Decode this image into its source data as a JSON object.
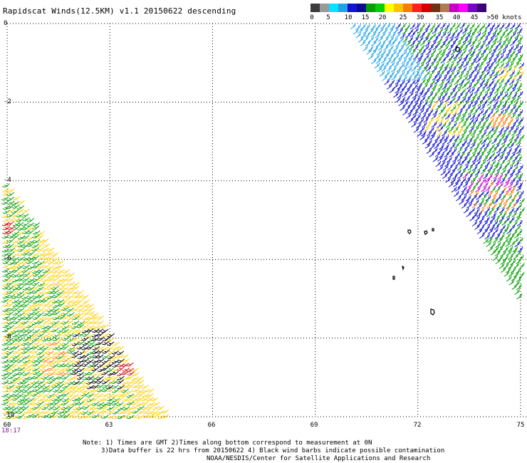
{
  "title": "Rapidscat Winds(12.5KM) v1.1 20150622 descending",
  "legend": {
    "colors": [
      "#3c3c3c",
      "#9a9a9a",
      "#00e5ff",
      "#1fa4e8",
      "#1212d6",
      "#0a0a90",
      "#00a000",
      "#00d000",
      "#ffff00",
      "#ffc400",
      "#ff7c00",
      "#ff2020",
      "#d60000",
      "#6e3216",
      "#b07a52",
      "#c800c8",
      "#ff00ff",
      "#7a00c8",
      "#3c0078"
    ],
    "labels": [
      "0",
      "5",
      "10",
      "15",
      "20",
      "25",
      "30",
      "35",
      "40",
      "45",
      ">50 knots"
    ]
  },
  "axes": {
    "lat_labels": [
      "0",
      "-2",
      "-4",
      "-6",
      "-8",
      "-10"
    ],
    "lon_labels": [
      "60",
      "63",
      "66",
      "69",
      "72",
      "75"
    ],
    "lat_range": [
      -10,
      0
    ],
    "lon_range": [
      60,
      75
    ],
    "grid": "dotted"
  },
  "time_label": "18:17",
  "notes": [
    "Note: 1) Times are GMT 2)Times along bottom correspond to measurement at 0N",
    "3)Data buffer is 22 hrs from 20150622 4) Black wind barbs indicate possible contamination",
    "NOAA/NESDIS/Center for Satellite Applications and Research"
  ],
  "wind_colors": {
    "light": "#1fa4e8",
    "moderate": "#1212d6",
    "fresh": "#00a000",
    "strong": "#ffd000",
    "gale": "#ff7c00",
    "storm": "#d60000",
    "extreme": "#d000d0",
    "contaminated": "#000000"
  }
}
